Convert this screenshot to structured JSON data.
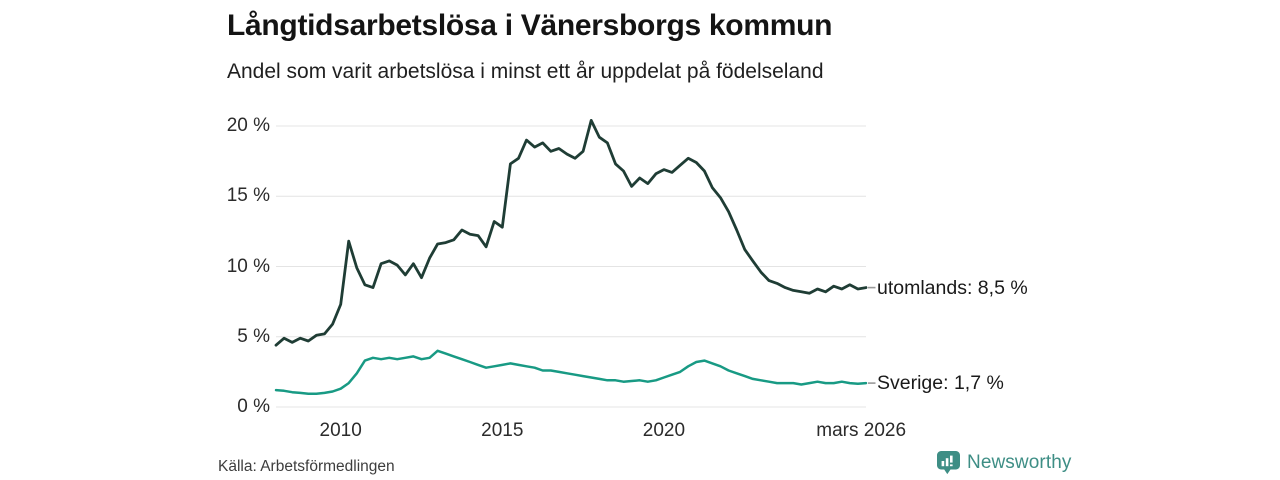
{
  "footer": {
    "brand": "Newsworthy"
  },
  "colors": {
    "grid": "#e4e4e4",
    "connector": "#999999",
    "brand_teal": "#3e8e85"
  },
  "chart_data": {
    "type": "line",
    "title": "Långtidsarbetslösa i Vänersborgs kommun",
    "subtitle": "Andel som varit arbetslösa i minst ett år uppdelat på födelseland",
    "source": "Källa: Arbetsförmedlingen",
    "grid": "horizontal",
    "legend_position": "end-of-line-labels",
    "x_axis": {
      "min": 2008,
      "max": 2026.25,
      "x_start": 2008,
      "x_step": 0.25,
      "ticks": [
        {
          "x": 2010,
          "label": "2010"
        },
        {
          "x": 2015,
          "label": "2015"
        },
        {
          "x": 2020,
          "label": "2020"
        },
        {
          "x": 2026.1,
          "label": "mars 2026"
        }
      ]
    },
    "y_axis": {
      "min": 0,
      "max": 20,
      "unit": "%",
      "ticks": [
        {
          "v": 0,
          "label": "0 %"
        },
        {
          "v": 5,
          "label": "5 %"
        },
        {
          "v": 10,
          "label": "10 %"
        },
        {
          "v": 15,
          "label": "15 %"
        },
        {
          "v": 20,
          "label": "20 %"
        }
      ]
    },
    "series": [
      {
        "name": "utomlands",
        "label": "utomlands: 8,5 %",
        "end_value": 8.5,
        "color": "#1f3d35",
        "stroke_width": 2.8,
        "values": [
          4.4,
          4.9,
          4.6,
          4.9,
          4.7,
          5.1,
          5.2,
          5.9,
          7.3,
          11.8,
          9.9,
          8.7,
          8.5,
          10.2,
          10.4,
          10.1,
          9.4,
          10.2,
          9.2,
          10.6,
          11.6,
          11.7,
          11.9,
          12.6,
          12.3,
          12.2,
          11.4,
          13.2,
          12.8,
          17.3,
          17.7,
          19.0,
          18.5,
          18.8,
          18.2,
          18.4,
          18.0,
          17.7,
          18.2,
          20.4,
          19.2,
          18.8,
          17.3,
          16.8,
          15.7,
          16.3,
          15.9,
          16.6,
          16.9,
          16.7,
          17.2,
          17.7,
          17.4,
          16.8,
          15.6,
          14.9,
          13.9,
          12.6,
          11.2,
          10.4,
          9.6,
          9.0,
          8.8,
          8.5,
          8.3,
          8.2,
          8.1,
          8.4,
          8.2,
          8.6,
          8.4,
          8.7,
          8.4,
          8.5
        ]
      },
      {
        "name": "Sverige",
        "label": "Sverige: 1,7 %",
        "end_value": 1.7,
        "color": "#189a84",
        "stroke_width": 2.5,
        "values": [
          1.2,
          1.15,
          1.05,
          1.0,
          0.95,
          0.95,
          1.0,
          1.1,
          1.3,
          1.7,
          2.4,
          3.3,
          3.5,
          3.4,
          3.5,
          3.4,
          3.5,
          3.6,
          3.4,
          3.5,
          4.0,
          3.8,
          3.6,
          3.4,
          3.2,
          3.0,
          2.8,
          2.9,
          3.0,
          3.1,
          3.0,
          2.9,
          2.8,
          2.6,
          2.6,
          2.5,
          2.4,
          2.3,
          2.2,
          2.1,
          2.0,
          1.9,
          1.9,
          1.8,
          1.85,
          1.9,
          1.8,
          1.9,
          2.1,
          2.3,
          2.5,
          2.9,
          3.2,
          3.3,
          3.1,
          2.9,
          2.6,
          2.4,
          2.2,
          2.0,
          1.9,
          1.8,
          1.7,
          1.7,
          1.7,
          1.6,
          1.7,
          1.8,
          1.7,
          1.7,
          1.8,
          1.7,
          1.65,
          1.7
        ]
      }
    ]
  }
}
